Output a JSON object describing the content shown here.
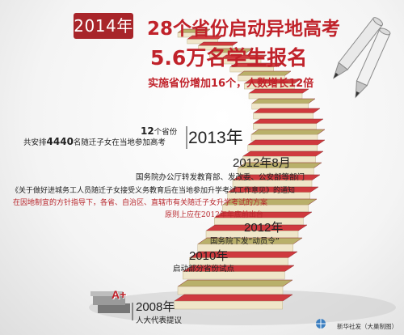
{
  "header": {
    "year_badge": "2014年",
    "title_line1": "28个省份启动异地高考",
    "title_line2": "5.6万名学生报名",
    "subtitle": "实施省份增加16个，人数增长12倍"
  },
  "timeline": {
    "y2013": {
      "year": "2013年",
      "provinces_count": "12",
      "provinces_unit": "个省份",
      "students_prefix": "共安排",
      "students_count": "4440",
      "students_suffix": "名随迁子女在当地参加高考"
    },
    "y2012_aug": {
      "year": "2012年8月",
      "line1": "国务院办公厅转发教育部、发改委、公安部等部门",
      "line2": "《关于做好进城务工人员随迁子女接受义务教育后在当地参加升学考试工作意见》的通知",
      "line3": "在因地制宜的方针指导下，各省、自治区、直辖市有关随迁子女升学考试的方案",
      "line4": "原则上应在2012年年底前出台"
    },
    "y2012": {
      "year": "2012年",
      "note": "国务院下发“动员令”"
    },
    "y2010": {
      "year": "2010年",
      "note": "启动部分省份试点"
    },
    "y2008": {
      "year": "2008年",
      "note": "人大代表提议"
    }
  },
  "book_grade": "A+",
  "credit": "新华社发（大巢制图）",
  "colors": {
    "accent_red": "#c0222a",
    "badge_red": "#a8252a",
    "book_red": "#cf3a3e",
    "page_cream": "#efe6c9"
  }
}
